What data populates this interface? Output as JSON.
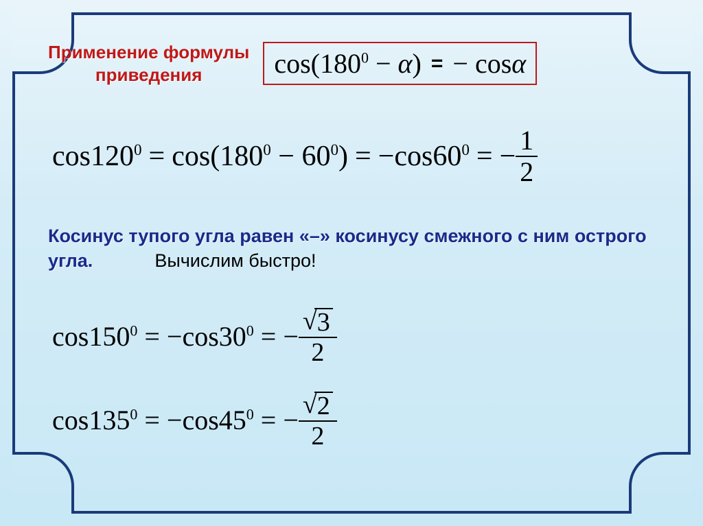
{
  "title_line1": "Применение формулы",
  "title_line2": "приведения",
  "formula_lhs": "cos(180",
  "formula_lhs_sup": "0",
  "formula_minus_alpha": " − ",
  "alpha": "α",
  "formula_close": ")",
  "eq": "=",
  "formula_rhs_sign": "−",
  "formula_rhs": "cos",
  "ex1": {
    "a": "cos120",
    "a_sup": "0",
    "b1": "cos(180",
    "b1_sup": "0",
    "b_minus": " − 60",
    "b2_sup": "0",
    "b_close": ")",
    "c_sign": "−",
    "c": "cos60",
    "c_sup": "0",
    "d_sign": "−",
    "d_num": "1",
    "d_den": "2"
  },
  "rule_part1": "Косинус тупого угла равен  «–»  косинусу смежного с ним острого угла.",
  "rule_part2": "Вычислим быстро!",
  "ex2a": {
    "a": "cos150",
    "a_sup": "0",
    "b_sign": "−",
    "b": "cos30",
    "b_sup": "0",
    "c_sign": "−",
    "c_sqrt": "3",
    "c_den": "2"
  },
  "ex2b": {
    "a": "cos135",
    "a_sup": "0",
    "b_sign": "−",
    "b": "cos45",
    "b_sup": "0",
    "c_sign": "−",
    "c_sqrt": "2",
    "c_den": "2"
  },
  "colors": {
    "title": "#c01818",
    "border": "#1a3a7a",
    "rule_text": "#1a2a8a",
    "formula_border": "#c01818"
  }
}
